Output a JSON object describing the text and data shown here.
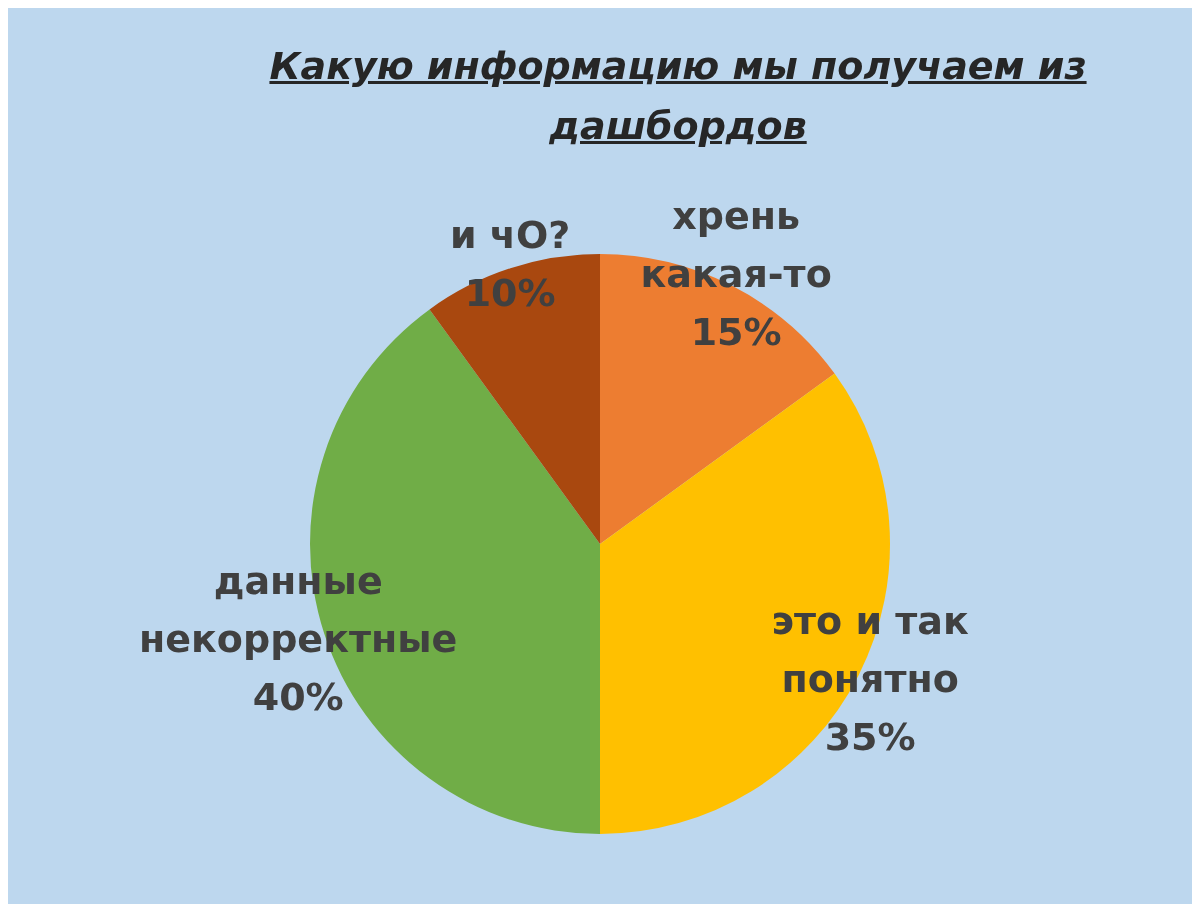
{
  "chart_data": {
    "type": "pie",
    "title": "Какую информацию мы получаем из дашбордов",
    "categories": [
      "хрень какая-то",
      "это и так понятно",
      "данные некорректные",
      "и чО?"
    ],
    "values": [
      15,
      35,
      40,
      10
    ],
    "value_labels": [
      "15%",
      "35%",
      "40%",
      "10%"
    ],
    "colors": [
      "#ed7d31",
      "#ffc000",
      "#70ad47",
      "#a9480f"
    ]
  }
}
